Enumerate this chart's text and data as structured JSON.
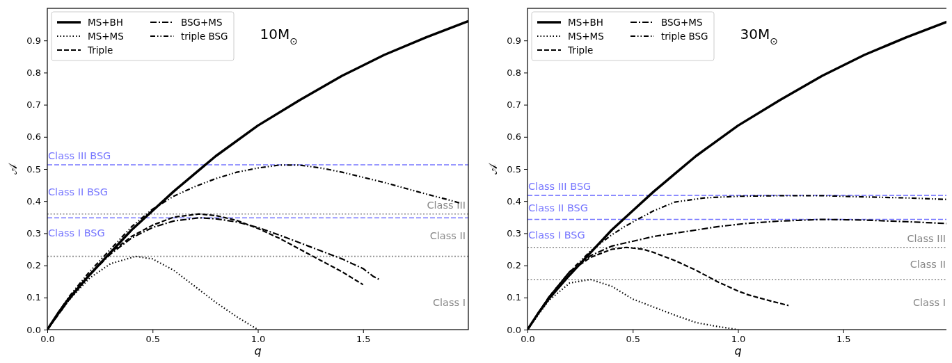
{
  "chart_data": [
    {
      "type": "line",
      "title": "10M$_{⊙}$",
      "xlabel": "q",
      "ylabel": "𝒜",
      "xlim": [
        0,
        2
      ],
      "xticks": [
        {
          "value": 0,
          "label": "0.0"
        },
        {
          "value": 0.5,
          "label": "0.5"
        },
        {
          "value": 1,
          "label": "1.0"
        },
        {
          "value": 1.5,
          "label": "1.5"
        }
      ],
      "ylim": [
        0,
        1
      ],
      "yticks": [
        {
          "value": 0,
          "label": "0.0"
        },
        0.1,
        0.2,
        0.3,
        0.4,
        0.5,
        0.6,
        0.7,
        0.8,
        0.9
      ],
      "grid": false,
      "legend": "top left",
      "marker": "none",
      "series": [
        {
          "name": "MS+BH",
          "color": "#000000",
          "line_style": "solid",
          "x": [
            0,
            0.05,
            0.1,
            0.2,
            0.3,
            0.4,
            0.5,
            0.6,
            0.7,
            0.8,
            1.0,
            1.2,
            1.4,
            1.6,
            1.8,
            2.0
          ],
          "values": [
            0,
            0.05,
            0.095,
            0.17,
            0.24,
            0.31,
            0.37,
            0.43,
            0.485,
            0.54,
            0.635,
            0.715,
            0.79,
            0.855,
            0.91,
            0.96
          ]
        },
        {
          "name": "MS+MS",
          "color": "#000000",
          "line_style": "dotted",
          "x": [
            0,
            0.1,
            0.2,
            0.3,
            0.42,
            0.5,
            0.6,
            0.7,
            0.8,
            0.9,
            1.0
          ],
          "values": [
            0,
            0.09,
            0.16,
            0.205,
            0.228,
            0.22,
            0.185,
            0.135,
            0.085,
            0.04,
            0
          ]
        },
        {
          "name": "Triple",
          "color": "#000000",
          "line_style": "dashed",
          "x": [
            0,
            0.1,
            0.2,
            0.3,
            0.4,
            0.5,
            0.6,
            0.72,
            0.8,
            0.9,
            1.0,
            1.1,
            1.2,
            1.3,
            1.4,
            1.5
          ],
          "values": [
            0,
            0.09,
            0.17,
            0.24,
            0.29,
            0.325,
            0.35,
            0.36,
            0.355,
            0.34,
            0.315,
            0.285,
            0.25,
            0.215,
            0.18,
            0.14
          ]
        },
        {
          "name": "BSG+MS",
          "color": "#000000",
          "line_style": "dashdot",
          "x": [
            0,
            0.1,
            0.2,
            0.3,
            0.4,
            0.5,
            0.6,
            0.72,
            0.8,
            0.9,
            1.0,
            1.1,
            1.2,
            1.3,
            1.4,
            1.5,
            1.55,
            1.58
          ],
          "values": [
            0,
            0.09,
            0.17,
            0.235,
            0.285,
            0.318,
            0.338,
            0.348,
            0.345,
            0.335,
            0.318,
            0.295,
            0.27,
            0.245,
            0.22,
            0.19,
            0.165,
            0.155
          ]
        },
        {
          "name": "triple BSG",
          "color": "#000000",
          "line_style": "dashdotdot",
          "x": [
            0,
            0.1,
            0.2,
            0.3,
            0.4,
            0.5,
            0.6,
            0.7,
            0.8,
            0.9,
            1.0,
            1.1,
            1.2,
            1.3,
            1.4,
            1.5,
            1.6,
            1.7,
            1.8,
            1.9,
            1.96
          ],
          "values": [
            0,
            0.1,
            0.18,
            0.25,
            0.32,
            0.375,
            0.415,
            0.445,
            0.47,
            0.49,
            0.503,
            0.512,
            0.512,
            0.503,
            0.49,
            0.474,
            0.458,
            0.44,
            0.422,
            0.405,
            0.394
          ]
        }
      ],
      "ref_lines": [
        {
          "axis": "y",
          "value": 0.513,
          "label": "Class III BSG",
          "color": "#7777ff",
          "line_style": "dashed"
        },
        {
          "axis": "y",
          "value": 0.348,
          "label": "Class II BSG",
          "color": "#7777ff",
          "line_style": "dashed"
        },
        {
          "axis": "y",
          "value": 0.36,
          "label": "Class III",
          "color": "#888888",
          "line_style": "dotted"
        },
        {
          "axis": "y",
          "value": 0.228,
          "label": "Class II",
          "color": "#888888",
          "line_style": "dotted"
        }
      ],
      "annotations": [
        "Class I BSG",
        "Class I"
      ]
    },
    {
      "type": "line",
      "title": "30M$_{⊙}$",
      "xlabel": "q",
      "ylabel": "𝒜",
      "xlim": [
        0,
        2
      ],
      "xticks": [
        {
          "value": 0,
          "label": "0.0"
        },
        {
          "value": 0.5,
          "label": "0.5"
        },
        {
          "value": 1,
          "label": "1.0"
        },
        {
          "value": 1.5,
          "label": "1.5"
        }
      ],
      "ylim": [
        0,
        1
      ],
      "yticks": [
        {
          "value": 0,
          "label": "0.0"
        },
        0.1,
        0.2,
        0.3,
        0.4,
        0.5,
        0.6,
        0.7,
        0.8,
        0.9
      ],
      "grid": false,
      "legend": "top left",
      "marker": "none",
      "series": [
        {
          "name": "MS+BH",
          "color": "#000000",
          "line_style": "solid",
          "x": [
            0,
            0.05,
            0.1,
            0.2,
            0.3,
            0.4,
            0.5,
            0.6,
            0.7,
            0.8,
            1.0,
            1.2,
            1.4,
            1.6,
            1.8,
            2.0
          ],
          "values": [
            0,
            0.05,
            0.095,
            0.17,
            0.24,
            0.31,
            0.37,
            0.43,
            0.485,
            0.54,
            0.635,
            0.715,
            0.79,
            0.855,
            0.91,
            0.96
          ]
        },
        {
          "name": "MS+MS",
          "color": "#000000",
          "line_style": "dotted",
          "x": [
            0,
            0.1,
            0.2,
            0.3,
            0.4,
            0.5,
            0.6,
            0.7,
            0.8,
            0.9,
            1.0
          ],
          "values": [
            0,
            0.09,
            0.145,
            0.156,
            0.135,
            0.095,
            0.07,
            0.045,
            0.022,
            0.01,
            0
          ]
        },
        {
          "name": "Triple",
          "color": "#000000",
          "line_style": "dashed",
          "x": [
            0,
            0.1,
            0.2,
            0.3,
            0.4,
            0.47,
            0.55,
            0.6,
            0.7,
            0.8,
            0.9,
            1.0,
            1.05,
            1.15,
            1.24
          ],
          "values": [
            0,
            0.1,
            0.18,
            0.225,
            0.25,
            0.256,
            0.25,
            0.24,
            0.215,
            0.185,
            0.15,
            0.12,
            0.108,
            0.09,
            0.075
          ]
        },
        {
          "name": "BSG+MS",
          "color": "#000000",
          "line_style": "dashdot",
          "x": [
            0,
            0.1,
            0.2,
            0.3,
            0.4,
            0.5,
            0.6,
            0.75,
            0.9,
            1.03,
            1.2,
            1.4,
            1.6,
            1.8,
            2.0
          ],
          "values": [
            0,
            0.1,
            0.18,
            0.23,
            0.26,
            0.275,
            0.29,
            0.305,
            0.32,
            0.33,
            0.338,
            0.343,
            0.341,
            0.336,
            0.33
          ]
        },
        {
          "name": "triple BSG",
          "color": "#000000",
          "line_style": "dashdotdot",
          "x": [
            0,
            0.1,
            0.2,
            0.3,
            0.4,
            0.46,
            0.52,
            0.6,
            0.7,
            0.84,
            1.0,
            1.2,
            1.4,
            1.6,
            1.8,
            2.0
          ],
          "values": [
            0,
            0.1,
            0.18,
            0.245,
            0.295,
            0.32,
            0.342,
            0.37,
            0.397,
            0.41,
            0.415,
            0.417,
            0.417,
            0.413,
            0.41,
            0.405
          ]
        }
      ],
      "ref_lines": [
        {
          "axis": "y",
          "value": 0.418,
          "label": "Class III BSG",
          "color": "#7777ff",
          "line_style": "dashed"
        },
        {
          "axis": "y",
          "value": 0.343,
          "label": "Class II BSG",
          "color": "#7777ff",
          "line_style": "dashed"
        },
        {
          "axis": "y",
          "value": 0.256,
          "label": "Class III",
          "color": "#888888",
          "line_style": "dotted"
        },
        {
          "axis": "y",
          "value": 0.156,
          "label": "Class II",
          "color": "#888888",
          "line_style": "dotted"
        }
      ],
      "annotations": [
        "Class I BSG",
        "Class I"
      ]
    }
  ]
}
